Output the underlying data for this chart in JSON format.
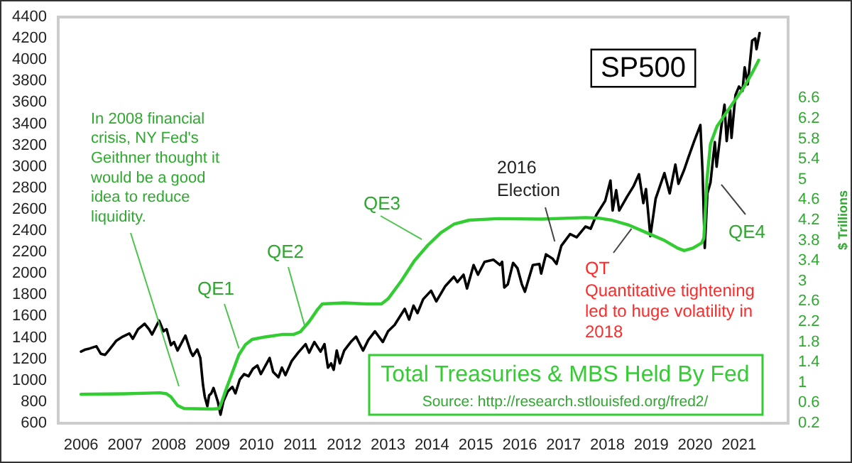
{
  "chart_data": {
    "type": "line",
    "xlim": [
      2005.48,
      2022.12
    ],
    "xticks": [
      2006,
      2007,
      2008,
      2009,
      2010,
      2011,
      2012,
      2013,
      2014,
      2015,
      2016,
      2017,
      2018,
      2019,
      2020,
      2021
    ],
    "ylim": [
      600,
      4400
    ],
    "yticks": [
      600,
      800,
      1000,
      1200,
      1400,
      1600,
      1800,
      2000,
      2200,
      2400,
      2600,
      2800,
      3000,
      3200,
      3400,
      3600,
      3800,
      4000,
      4200,
      4400
    ],
    "y2lim": [
      0.2,
      8.2
    ],
    "y2ticks": [
      0.2,
      0.6,
      1,
      1.4,
      1.8,
      2.2,
      2.6,
      3,
      3.4,
      3.8,
      4.2,
      4.6,
      5,
      5.4,
      5.8,
      6.2,
      6.6
    ],
    "y2label": "$ Trillions",
    "series": [
      {
        "name": "SP500",
        "color": "#000000",
        "x": [
          2006.0,
          2006.1,
          2006.2,
          2006.35,
          2006.45,
          2006.55,
          2006.65,
          2006.8,
          2006.95,
          2007.1,
          2007.18,
          2007.3,
          2007.45,
          2007.55,
          2007.62,
          2007.78,
          2007.88,
          2007.95,
          2008.05,
          2008.12,
          2008.2,
          2008.38,
          2008.5,
          2008.55,
          2008.65,
          2008.72,
          2008.78,
          2008.82,
          2008.88,
          2008.92,
          2008.97,
          2009.02,
          2009.12,
          2009.18,
          2009.25,
          2009.35,
          2009.45,
          2009.52,
          2009.62,
          2009.72,
          2009.82,
          2009.92,
          2010.02,
          2010.1,
          2010.3,
          2010.38,
          2010.5,
          2010.58,
          2010.66,
          2010.8,
          2010.95,
          2011.12,
          2011.2,
          2011.32,
          2011.46,
          2011.55,
          2011.6,
          2011.63,
          2011.7,
          2011.76,
          2011.83,
          2011.9,
          2012.0,
          2012.15,
          2012.27,
          2012.43,
          2012.55,
          2012.7,
          2012.88,
          2013.0,
          2013.15,
          2013.38,
          2013.48,
          2013.58,
          2013.67,
          2013.8,
          2013.98,
          2014.1,
          2014.3,
          2014.5,
          2014.58,
          2014.72,
          2014.8,
          2014.95,
          2015.05,
          2015.2,
          2015.4,
          2015.55,
          2015.6,
          2015.65,
          2015.73,
          2015.85,
          2015.95,
          2016.05,
          2016.12,
          2016.3,
          2016.45,
          2016.49,
          2016.6,
          2016.75,
          2016.84,
          2016.95,
          2017.15,
          2017.3,
          2017.5,
          2017.62,
          2017.75,
          2017.95,
          2018.07,
          2018.12,
          2018.2,
          2018.27,
          2018.45,
          2018.6,
          2018.72,
          2018.82,
          2018.88,
          2018.98,
          2019.1,
          2019.3,
          2019.42,
          2019.55,
          2019.62,
          2019.75,
          2019.85,
          2019.98,
          2020.12,
          2020.17,
          2020.22,
          2020.28,
          2020.35,
          2020.45,
          2020.49,
          2020.6,
          2020.67,
          2020.72,
          2020.8,
          2020.83,
          2020.92,
          2021.0,
          2021.08,
          2021.13,
          2021.2,
          2021.3,
          2021.37,
          2021.4,
          2021.47
        ],
        "values": [
          1270,
          1290,
          1300,
          1320,
          1250,
          1240,
          1290,
          1370,
          1410,
          1440,
          1390,
          1480,
          1530,
          1480,
          1430,
          1560,
          1460,
          1480,
          1330,
          1360,
          1280,
          1420,
          1270,
          1230,
          1290,
          1210,
          960,
          850,
          760,
          860,
          880,
          930,
          800,
          680,
          810,
          900,
          940,
          880,
          1010,
          1060,
          1040,
          1110,
          1140,
          1060,
          1210,
          1080,
          1030,
          1120,
          1050,
          1180,
          1260,
          1340,
          1260,
          1360,
          1270,
          1340,
          1200,
          1120,
          1160,
          1100,
          1280,
          1160,
          1280,
          1360,
          1410,
          1280,
          1380,
          1460,
          1360,
          1460,
          1520,
          1670,
          1570,
          1700,
          1630,
          1760,
          1840,
          1740,
          1880,
          1970,
          1920,
          1990,
          1860,
          2080,
          1990,
          2110,
          2130,
          2080,
          2110,
          1870,
          1900,
          2100,
          2050,
          1900,
          1830,
          2080,
          2090,
          2000,
          2180,
          2140,
          2090,
          2260,
          2370,
          2340,
          2440,
          2420,
          2550,
          2680,
          2870,
          2590,
          2780,
          2590,
          2720,
          2820,
          2930,
          2660,
          2790,
          2350,
          2700,
          2940,
          2750,
          3020,
          2840,
          2970,
          3090,
          3240,
          3390,
          2950,
          2240,
          2750,
          2850,
          3230,
          3000,
          3380,
          3580,
          3240,
          3530,
          3270,
          3670,
          3750,
          3710,
          3930,
          3770,
          4180,
          4200,
          4100,
          4250
        ]
      },
      {
        "name": "Total Treasuries & MBS Held By Fed",
        "color": "#33cc33",
        "axis": "y2",
        "x": [
          2006.0,
          2007.0,
          2007.8,
          2007.95,
          2008.05,
          2008.2,
          2008.35,
          2009.0,
          2009.15,
          2009.2,
          2009.3,
          2009.45,
          2009.6,
          2009.75,
          2009.9,
          2010.2,
          2010.6,
          2010.85,
          2011.0,
          2011.2,
          2011.4,
          2011.5,
          2012.0,
          2012.5,
          2012.85,
          2013.0,
          2013.3,
          2013.6,
          2013.9,
          2014.2,
          2014.5,
          2014.85,
          2015.5,
          2016.5,
          2017.5,
          2017.8,
          2018.1,
          2018.5,
          2018.9,
          2019.3,
          2019.6,
          2019.75,
          2019.95,
          2020.15,
          2020.2,
          2020.27,
          2020.35,
          2020.5,
          2020.7,
          2020.9,
          2021.1,
          2021.3,
          2021.45
        ],
        "values": [
          0.77,
          0.78,
          0.8,
          0.78,
          0.72,
          0.55,
          0.49,
          0.48,
          0.49,
          0.6,
          0.85,
          1.2,
          1.55,
          1.75,
          1.85,
          1.9,
          1.95,
          1.95,
          2.0,
          2.2,
          2.45,
          2.55,
          2.57,
          2.55,
          2.55,
          2.65,
          3.0,
          3.4,
          3.7,
          3.95,
          4.12,
          4.2,
          4.23,
          4.22,
          4.25,
          4.24,
          4.2,
          4.1,
          3.95,
          3.8,
          3.65,
          3.6,
          3.65,
          3.75,
          3.85,
          5.0,
          5.7,
          6.05,
          6.3,
          6.55,
          6.8,
          7.1,
          7.35
        ]
      }
    ],
    "annotations": [
      "In 2008 financial crisis, NY Fed's Geithner thought it would be a good idea to reduce liquidity.",
      {
        "text": "QE1",
        "x": 2009.6,
        "y": 1300
      },
      {
        "text": "QE2",
        "x": 2011.1,
        "y": 1510
      },
      {
        "text": "QE3",
        "x": 2013.77,
        "y": 2320
      },
      {
        "text": "2016 Election",
        "x": 2016.8,
        "y": 2300
      },
      {
        "text": "QT",
        "x": 2018.55,
        "y": 2420
      },
      "Quantitative tightening led to huge volatility in 2018",
      "QE4",
      "Source: http://research.stlouisfed.org/fred2/"
    ]
  }
}
